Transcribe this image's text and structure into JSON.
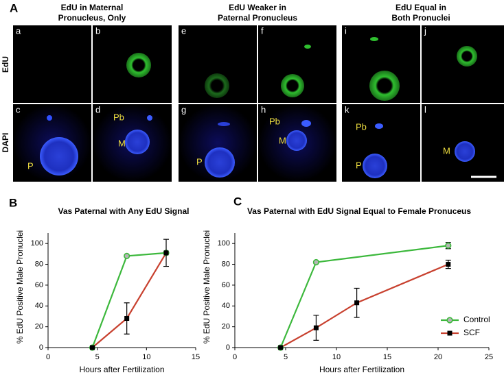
{
  "panel_a": {
    "label": "A",
    "groups": [
      [
        "EdU in Maternal",
        "Pronucleus, Only"
      ],
      [
        "EdU Weaker in",
        "Paternal Pronucleus"
      ],
      [
        "EdU Equal in",
        "Both Pronuclei"
      ]
    ],
    "rows": [
      "EdU",
      "DAPI"
    ],
    "cells": [
      "a",
      "b",
      "c",
      "d",
      "e",
      "f",
      "g",
      "h",
      "i",
      "j",
      "k",
      "l"
    ],
    "annotations": [
      "P",
      "Pb",
      "M",
      "P",
      "Pb",
      "M",
      "Pb",
      "P",
      "M"
    ]
  },
  "chart_data": [
    {
      "type": "line",
      "panel_label": "B",
      "title": "Vas Paternal with Any EdU Signal",
      "x_label": "Hours after Fertilization",
      "y_label": "% EdU Positive Male Pronuclei",
      "xlim": [
        0,
        15
      ],
      "xticks": [
        0,
        5,
        10,
        15
      ],
      "ylim": [
        0,
        110
      ],
      "yticks": [
        0,
        20,
        40,
        60,
        80,
        100
      ],
      "series": [
        {
          "name": "Control",
          "color": "#3cb83c",
          "marker": "circle",
          "x": [
            4.5,
            8,
            12
          ],
          "values": [
            0,
            88,
            91
          ]
        },
        {
          "name": "SCF",
          "color": "#c8412f",
          "marker": "square",
          "x": [
            4.5,
            8,
            12
          ],
          "values": [
            0,
            28,
            91
          ],
          "errors": [
            0,
            15,
            13
          ]
        }
      ]
    },
    {
      "type": "line",
      "panel_label": "C",
      "title": "Vas Paternal with EdU Signal Equal to Female Pronuceus",
      "x_label": "Hours after Fertilization",
      "y_label": "% EdU Positive Male Pronuclei",
      "xlim": [
        0,
        25
      ],
      "xticks": [
        0,
        5,
        10,
        15,
        20,
        25
      ],
      "ylim": [
        0,
        110
      ],
      "yticks": [
        0,
        20,
        40,
        60,
        80,
        100
      ],
      "legend": "lower right",
      "series": [
        {
          "name": "Control",
          "color": "#3cb83c",
          "marker": "circle",
          "x": [
            4.5,
            8,
            21
          ],
          "values": [
            0,
            82,
            98
          ],
          "errors": [
            0,
            1,
            3
          ]
        },
        {
          "name": "SCF",
          "color": "#c8412f",
          "marker": "square",
          "x": [
            4.5,
            8,
            12,
            21
          ],
          "values": [
            0,
            19,
            43,
            80
          ],
          "errors": [
            0,
            12,
            14,
            4
          ]
        }
      ]
    }
  ]
}
